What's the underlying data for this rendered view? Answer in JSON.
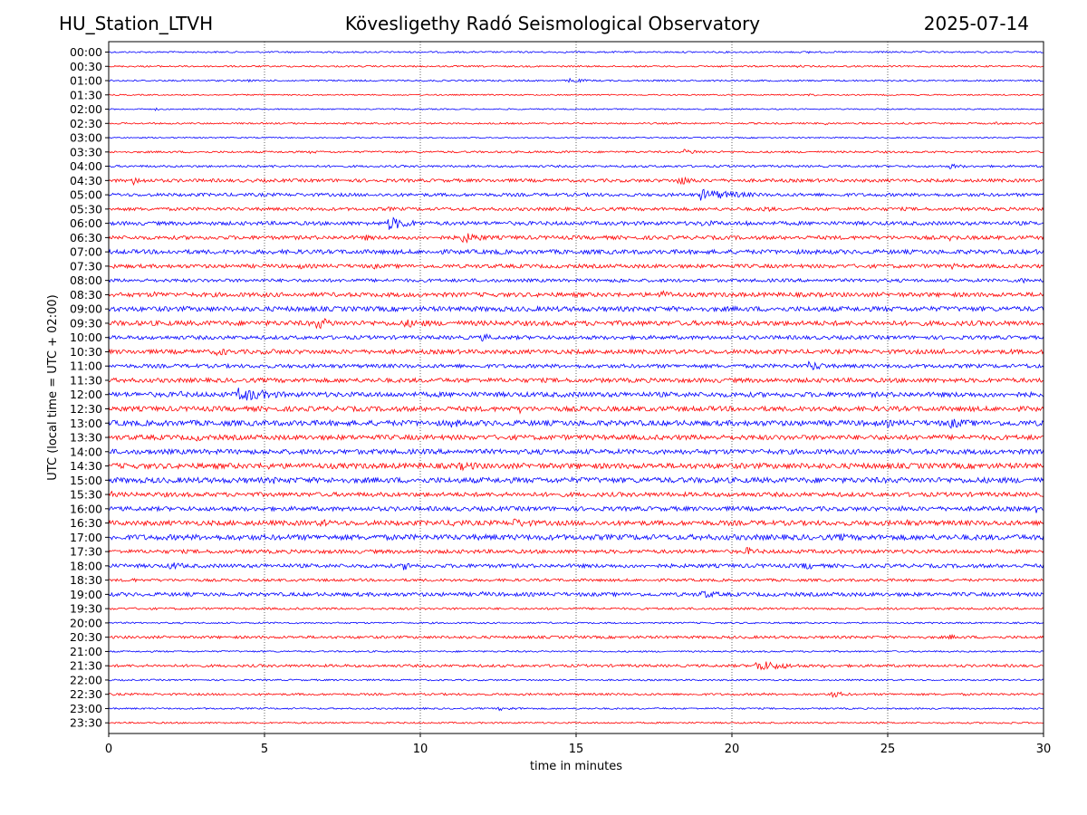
{
  "header": {
    "station": "HU_Station_LTVH",
    "title": "Kövesligethy Radó Seismological Observatory",
    "date": "2025-07-14"
  },
  "chart_data": {
    "type": "line",
    "title": "Kövesligethy Radó Seismological Observatory",
    "xlabel": "time in minutes",
    "ylabel": "UTC (local time = UTC + 02:00)",
    "xlim": [
      0,
      30
    ],
    "x_ticks": [
      0,
      5,
      10,
      15,
      20,
      25,
      30
    ],
    "x_tick_labels": [
      "0",
      "5",
      "10",
      "15",
      "20",
      "25",
      "30"
    ],
    "grid": "vertical dotted lines at 5-minute intervals",
    "colors": {
      "even_rows": "#0000ff",
      "odd_rows": "#ff0000",
      "grid": "#000000"
    },
    "rows": [
      {
        "label": "00:00",
        "noise": 0.15,
        "events": [
          {
            "t": 22.5,
            "amp": 0.5,
            "dur": 0.1
          }
        ]
      },
      {
        "label": "00:30",
        "noise": 0.15,
        "events": [
          {
            "t": 22.0,
            "amp": 0.35,
            "dur": 1.0
          },
          {
            "t": 19.5,
            "amp": 0.25,
            "dur": 0.8
          }
        ]
      },
      {
        "label": "01:00",
        "noise": 0.15,
        "events": [
          {
            "t": 4.5,
            "amp": 0.3,
            "dur": 0.3
          },
          {
            "t": 14.8,
            "amp": 0.45,
            "dur": 1.5
          },
          {
            "t": 10.5,
            "amp": 0.25,
            "dur": 1.0
          }
        ]
      },
      {
        "label": "01:30",
        "noise": 0.12,
        "events": [
          {
            "t": 22.5,
            "amp": 0.3,
            "dur": 0.8
          },
          {
            "t": 1.5,
            "amp": 0.2,
            "dur": 0.2
          }
        ]
      },
      {
        "label": "02:00",
        "noise": 0.12,
        "events": [
          {
            "t": 1.5,
            "amp": 0.25,
            "dur": 0.8
          }
        ]
      },
      {
        "label": "02:30",
        "noise": 0.15,
        "events": [
          {
            "t": 23.0,
            "amp": 0.3,
            "dur": 0.6
          },
          {
            "t": 28.5,
            "amp": 0.35,
            "dur": 1.0
          },
          {
            "t": 25.5,
            "amp": 0.2,
            "dur": 1.5
          }
        ]
      },
      {
        "label": "03:00",
        "noise": 0.12,
        "events": []
      },
      {
        "label": "03:30",
        "noise": 0.18,
        "events": [
          {
            "t": 18.5,
            "amp": 0.5,
            "dur": 2.0
          },
          {
            "t": 6.5,
            "amp": 0.3,
            "dur": 1.5
          },
          {
            "t": 14.5,
            "amp": 0.3,
            "dur": 1.5
          }
        ]
      },
      {
        "label": "04:00",
        "noise": 0.2,
        "events": [
          {
            "t": 27.0,
            "amp": 0.5,
            "dur": 1.5
          },
          {
            "t": 5.3,
            "amp": 0.3,
            "dur": 0.6
          },
          {
            "t": 13.5,
            "amp": 0.25,
            "dur": 1.0
          }
        ]
      },
      {
        "label": "04:30",
        "noise": 0.3,
        "events": [
          {
            "t": 0.8,
            "amp": 0.8,
            "dur": 1.2
          },
          {
            "t": 18.3,
            "amp": 0.9,
            "dur": 1.5
          },
          {
            "t": 14.5,
            "amp": 0.35,
            "dur": 2.0
          }
        ]
      },
      {
        "label": "05:00",
        "noise": 0.3,
        "events": [
          {
            "t": 19.0,
            "amp": 1.1,
            "dur": 3.5
          },
          {
            "t": 15.0,
            "amp": 0.35,
            "dur": 1.5
          },
          {
            "t": 11.0,
            "amp": 0.3,
            "dur": 1.0
          }
        ]
      },
      {
        "label": "05:30",
        "noise": 0.3,
        "events": [
          {
            "t": 9.0,
            "amp": 0.4,
            "dur": 1.5
          },
          {
            "t": 21.0,
            "amp": 0.6,
            "dur": 1.5
          },
          {
            "t": 17.5,
            "amp": 0.35,
            "dur": 2.0
          },
          {
            "t": 25.5,
            "amp": 0.35,
            "dur": 2.0
          }
        ]
      },
      {
        "label": "06:00",
        "noise": 0.35,
        "events": [
          {
            "t": 9.0,
            "amp": 1.3,
            "dur": 2.0
          },
          {
            "t": 19.0,
            "amp": 0.6,
            "dur": 3.0
          },
          {
            "t": 20.5,
            "amp": 0.6,
            "dur": 0.4
          },
          {
            "t": 5.5,
            "amp": 0.4,
            "dur": 0.8
          }
        ]
      },
      {
        "label": "06:30",
        "noise": 0.35,
        "events": [
          {
            "t": 11.3,
            "amp": 1.1,
            "dur": 2.0
          },
          {
            "t": 8.2,
            "amp": 0.6,
            "dur": 1.5
          },
          {
            "t": 27.0,
            "amp": 0.6,
            "dur": 1.5
          },
          {
            "t": 13.2,
            "amp": 0.5,
            "dur": 0.3
          }
        ]
      },
      {
        "label": "07:00",
        "noise": 0.4,
        "events": [
          {
            "t": 12.5,
            "amp": 0.6,
            "dur": 1.0
          },
          {
            "t": 29.8,
            "amp": 0.5,
            "dur": 0.6
          },
          {
            "t": 15.0,
            "amp": 0.4,
            "dur": 0.5
          }
        ]
      },
      {
        "label": "07:30",
        "noise": 0.35,
        "events": [
          {
            "t": 6.2,
            "amp": 0.6,
            "dur": 0.6
          },
          {
            "t": 8.5,
            "amp": 0.6,
            "dur": 0.8
          },
          {
            "t": 27.0,
            "amp": 0.6,
            "dur": 1.5
          },
          {
            "t": 0.2,
            "amp": 0.5,
            "dur": 0.4
          }
        ]
      },
      {
        "label": "08:00",
        "noise": 0.3,
        "events": [
          {
            "t": 16.4,
            "amp": 0.7,
            "dur": 0.3
          },
          {
            "t": 29.2,
            "amp": 0.6,
            "dur": 1.5
          },
          {
            "t": 12.0,
            "amp": 0.35,
            "dur": 1.5
          }
        ]
      },
      {
        "label": "08:30",
        "noise": 0.4,
        "events": [
          {
            "t": 17.7,
            "amp": 0.8,
            "dur": 1.8
          },
          {
            "t": 1.5,
            "amp": 0.6,
            "dur": 2.0
          },
          {
            "t": 12.5,
            "amp": 0.45,
            "dur": 0.4
          }
        ]
      },
      {
        "label": "09:00",
        "noise": 0.45,
        "events": [
          {
            "t": 15.0,
            "amp": 0.6,
            "dur": 1.5
          },
          {
            "t": 6.0,
            "amp": 0.45,
            "dur": 3.0
          },
          {
            "t": 22.5,
            "amp": 0.45,
            "dur": 2.0
          }
        ]
      },
      {
        "label": "09:30",
        "noise": 0.45,
        "events": [
          {
            "t": 6.7,
            "amp": 1.2,
            "dur": 1.5
          },
          {
            "t": 9.5,
            "amp": 0.8,
            "dur": 4.0
          },
          {
            "t": 2.5,
            "amp": 0.4,
            "dur": 2.0
          }
        ]
      },
      {
        "label": "10:00",
        "noise": 0.35,
        "events": [
          {
            "t": 12.0,
            "amp": 0.7,
            "dur": 1.5
          },
          {
            "t": 3.0,
            "amp": 0.4,
            "dur": 1.5
          }
        ]
      },
      {
        "label": "10:30",
        "noise": 0.4,
        "events": [
          {
            "t": 3.5,
            "amp": 0.8,
            "dur": 1.5
          },
          {
            "t": 26.8,
            "amp": 0.7,
            "dur": 1.0
          },
          {
            "t": 29.0,
            "amp": 0.6,
            "dur": 0.3
          },
          {
            "t": 5.3,
            "amp": 0.6,
            "dur": 0.3
          }
        ]
      },
      {
        "label": "11:00",
        "noise": 0.35,
        "events": [
          {
            "t": 22.5,
            "amp": 1.0,
            "dur": 1.5
          },
          {
            "t": 29.5,
            "amp": 0.45,
            "dur": 1.0
          },
          {
            "t": 18.0,
            "amp": 0.4,
            "dur": 2.0
          }
        ]
      },
      {
        "label": "11:30",
        "noise": 0.4,
        "events": [
          {
            "t": 29.0,
            "amp": 0.5,
            "dur": 1.0
          },
          {
            "t": 4.0,
            "amp": 0.4,
            "dur": 2.0
          }
        ]
      },
      {
        "label": "12:00",
        "noise": 0.45,
        "events": [
          {
            "t": 4.2,
            "amp": 1.4,
            "dur": 3.0
          },
          {
            "t": 2.3,
            "amp": 0.7,
            "dur": 0.6
          },
          {
            "t": 8.5,
            "amp": 0.5,
            "dur": 4.0
          }
        ]
      },
      {
        "label": "12:30",
        "noise": 0.45,
        "events": [
          {
            "t": 13.2,
            "amp": 0.8,
            "dur": 1.0
          },
          {
            "t": 17.0,
            "amp": 0.45,
            "dur": 3.0
          },
          {
            "t": 22.0,
            "amp": 0.45,
            "dur": 2.0
          }
        ]
      },
      {
        "label": "13:00",
        "noise": 0.5,
        "events": [
          {
            "t": 11.0,
            "amp": 0.8,
            "dur": 2.5
          },
          {
            "t": 27.0,
            "amp": 1.0,
            "dur": 2.5
          },
          {
            "t": 25.0,
            "amp": 0.8,
            "dur": 0.6
          },
          {
            "t": 22.5,
            "amp": 0.5,
            "dur": 2.0
          }
        ]
      },
      {
        "label": "13:30",
        "noise": 0.45,
        "events": [
          {
            "t": 2.8,
            "amp": 0.7,
            "dur": 2.0
          },
          {
            "t": 26.0,
            "amp": 0.5,
            "dur": 2.0
          },
          {
            "t": 29.5,
            "amp": 0.5,
            "dur": 1.0
          }
        ]
      },
      {
        "label": "14:00",
        "noise": 0.45,
        "events": [
          {
            "t": 0.3,
            "amp": 0.5,
            "dur": 0.8
          },
          {
            "t": 6.0,
            "amp": 0.35,
            "dur": 2.0
          }
        ]
      },
      {
        "label": "14:30",
        "noise": 0.5,
        "events": [
          {
            "t": 11.3,
            "amp": 0.8,
            "dur": 4.0
          },
          {
            "t": 5.0,
            "amp": 0.7,
            "dur": 2.0
          },
          {
            "t": 2.0,
            "amp": 0.5,
            "dur": 0.4
          },
          {
            "t": 19.0,
            "amp": 0.5,
            "dur": 2.0
          }
        ]
      },
      {
        "label": "15:00",
        "noise": 0.5,
        "events": [
          {
            "t": 5.3,
            "amp": 0.7,
            "dur": 0.8
          },
          {
            "t": 3.0,
            "amp": 0.6,
            "dur": 0.8
          },
          {
            "t": 22.0,
            "amp": 0.4,
            "dur": 3.0
          }
        ]
      },
      {
        "label": "15:30",
        "noise": 0.4,
        "events": [
          {
            "t": 0.1,
            "amp": 0.6,
            "dur": 0.4
          },
          {
            "t": 1.8,
            "amp": 0.5,
            "dur": 1.0
          },
          {
            "t": 29.0,
            "amp": 0.5,
            "dur": 0.3
          },
          {
            "t": 16.5,
            "amp": 0.4,
            "dur": 0.4
          }
        ]
      },
      {
        "label": "16:00",
        "noise": 0.4,
        "events": [
          {
            "t": 29.8,
            "amp": 0.8,
            "dur": 0.4
          },
          {
            "t": 25.5,
            "amp": 0.6,
            "dur": 0.4
          },
          {
            "t": 4.2,
            "amp": 0.4,
            "dur": 0.5
          },
          {
            "t": 22.5,
            "amp": 0.5,
            "dur": 0.6
          }
        ]
      },
      {
        "label": "16:30",
        "noise": 0.45,
        "events": [
          {
            "t": 13.0,
            "amp": 0.9,
            "dur": 2.5
          },
          {
            "t": 11.0,
            "amp": 0.8,
            "dur": 2.0
          },
          {
            "t": 6.8,
            "amp": 0.8,
            "dur": 1.5
          },
          {
            "t": 25.6,
            "amp": 0.9,
            "dur": 0.3
          },
          {
            "t": 15.5,
            "amp": 0.6,
            "dur": 1.5
          },
          {
            "t": 1.2,
            "amp": 0.5,
            "dur": 0.6
          }
        ]
      },
      {
        "label": "17:00",
        "noise": 0.5,
        "events": [
          {
            "t": 23.5,
            "amp": 0.8,
            "dur": 1.0
          },
          {
            "t": 1.0,
            "amp": 0.6,
            "dur": 1.0
          },
          {
            "t": 12.8,
            "amp": 0.6,
            "dur": 0.5
          },
          {
            "t": 18.0,
            "amp": 0.45,
            "dur": 2.0
          }
        ]
      },
      {
        "label": "17:30",
        "noise": 0.35,
        "events": [
          {
            "t": 20.5,
            "amp": 0.8,
            "dur": 1.2
          },
          {
            "t": 7.0,
            "amp": 0.4,
            "dur": 1.5
          },
          {
            "t": 25.0,
            "amp": 0.4,
            "dur": 1.0
          }
        ]
      },
      {
        "label": "18:00",
        "noise": 0.35,
        "events": [
          {
            "t": 2.0,
            "amp": 0.8,
            "dur": 1.5
          },
          {
            "t": 9.5,
            "amp": 0.8,
            "dur": 1.5
          },
          {
            "t": 22.3,
            "amp": 0.8,
            "dur": 1.5
          }
        ]
      },
      {
        "label": "18:30",
        "noise": 0.25,
        "events": [
          {
            "t": 0.8,
            "amp": 0.5,
            "dur": 0.3
          },
          {
            "t": 13.0,
            "amp": 0.25,
            "dur": 2.0
          }
        ]
      },
      {
        "label": "19:00",
        "noise": 0.35,
        "events": [
          {
            "t": 19.0,
            "amp": 0.8,
            "dur": 2.0
          },
          {
            "t": 12.0,
            "amp": 0.5,
            "dur": 3.0
          },
          {
            "t": 23.5,
            "amp": 0.5,
            "dur": 2.0
          }
        ]
      },
      {
        "label": "19:30",
        "noise": 0.2,
        "events": [
          {
            "t": 8.0,
            "amp": 0.25,
            "dur": 2.0
          }
        ]
      },
      {
        "label": "20:00",
        "noise": 0.15,
        "events": [
          {
            "t": 5.0,
            "amp": 0.2,
            "dur": 1.0
          }
        ]
      },
      {
        "label": "20:30",
        "noise": 0.25,
        "events": [
          {
            "t": 27.0,
            "amp": 0.5,
            "dur": 1.0
          },
          {
            "t": 15.0,
            "amp": 0.3,
            "dur": 2.0
          },
          {
            "t": 22.0,
            "amp": 0.3,
            "dur": 2.0
          }
        ]
      },
      {
        "label": "21:00",
        "noise": 0.15,
        "events": []
      },
      {
        "label": "21:30",
        "noise": 0.25,
        "events": [
          {
            "t": 20.8,
            "amp": 1.1,
            "dur": 2.5
          },
          {
            "t": 23.0,
            "amp": 0.4,
            "dur": 1.0
          },
          {
            "t": 14.0,
            "amp": 0.25,
            "dur": 1.0
          }
        ]
      },
      {
        "label": "22:00",
        "noise": 0.15,
        "events": []
      },
      {
        "label": "22:30",
        "noise": 0.2,
        "events": [
          {
            "t": 23.2,
            "amp": 0.7,
            "dur": 1.2
          },
          {
            "t": 27.5,
            "amp": 0.3,
            "dur": 0.6
          },
          {
            "t": 21.0,
            "amp": 0.3,
            "dur": 1.0
          }
        ]
      },
      {
        "label": "23:00",
        "noise": 0.15,
        "events": [
          {
            "t": 12.5,
            "amp": 0.35,
            "dur": 3.0
          }
        ]
      },
      {
        "label": "23:30",
        "noise": 0.15,
        "events": [
          {
            "t": 29.0,
            "amp": 0.25,
            "dur": 1.0
          }
        ]
      }
    ]
  }
}
